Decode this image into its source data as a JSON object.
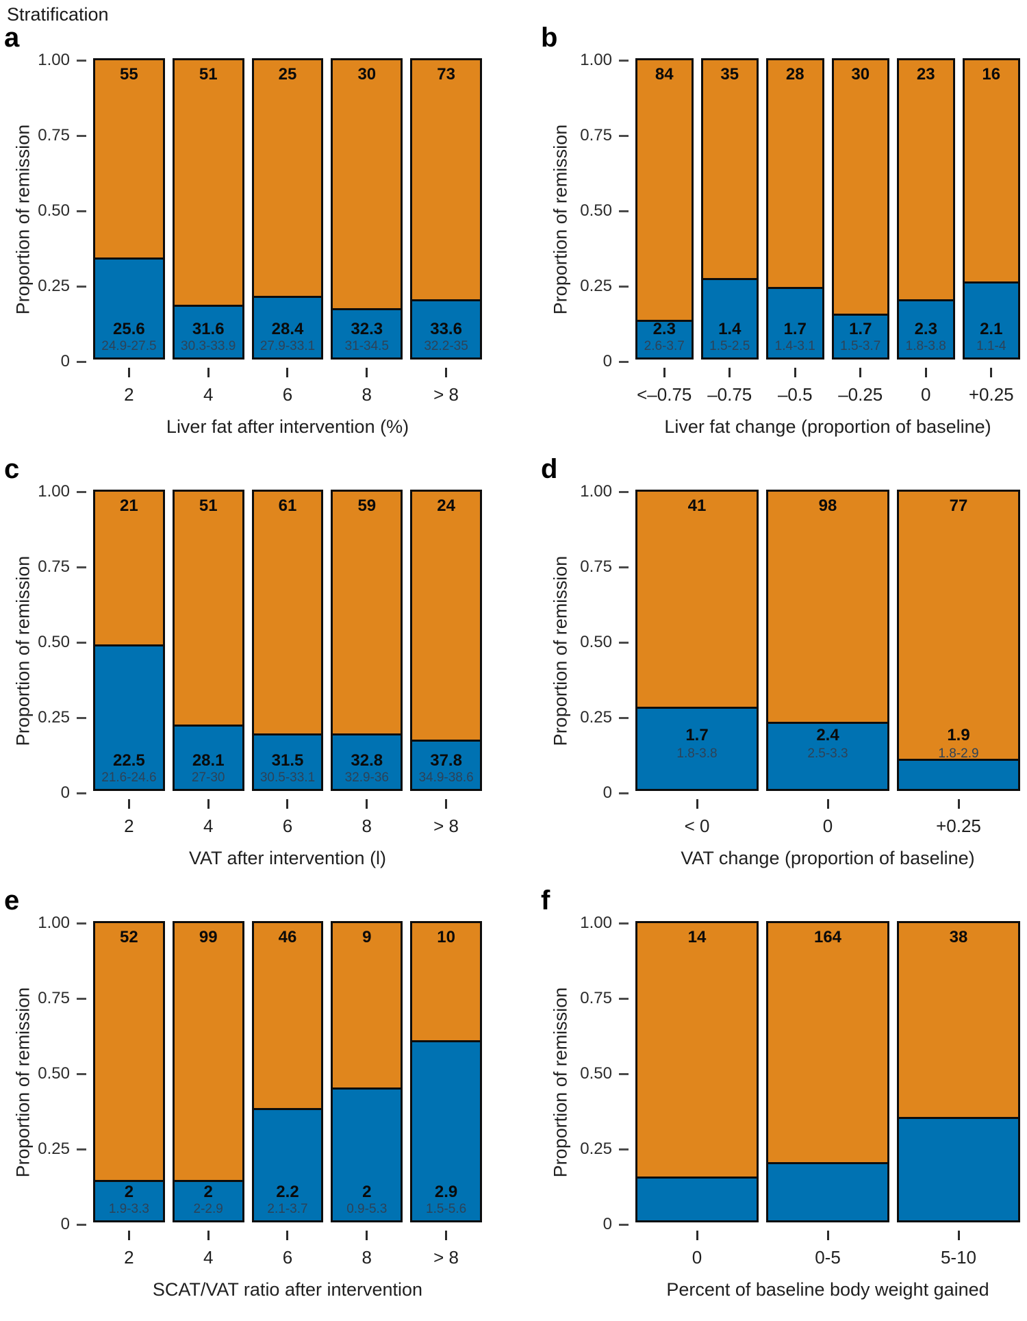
{
  "title": "Stratification",
  "ylabel": "Proportion of remission",
  "y_ticks": [
    {
      "label": "1.00",
      "v": 1.0
    },
    {
      "label": "0.75",
      "v": 0.75
    },
    {
      "label": "0.50",
      "v": 0.5
    },
    {
      "label": "0.25",
      "v": 0.25
    },
    {
      "label": "0",
      "v": 0.0
    }
  ],
  "colors": {
    "remission_blue": "#0072B2",
    "no_remission_orange": "#E0861D",
    "bar_border": "#0d0d0d",
    "range_text": "#2d4257"
  },
  "chart_data": [
    {
      "type": "bar",
      "panel": "a",
      "xlabel": "Liver fat after intervention (%)",
      "ylabel": "Proportion of remission",
      "ylim": [
        0,
        1
      ],
      "stack_order": [
        "remission (blue, bottom)",
        "no remission (orange, top)"
      ],
      "label_position": "low",
      "categories": [
        "2",
        "4",
        "6",
        "8",
        "> 8"
      ],
      "counts": [
        "55",
        "51",
        "25",
        "30",
        "73"
      ],
      "remission_proportion": [
        0.33,
        0.17,
        0.2,
        0.16,
        0.19
      ],
      "value_labels": [
        "25.6",
        "31.6",
        "28.4",
        "32.3",
        "33.6"
      ],
      "range_labels": [
        "24.9-27.5",
        "30.3-33.9",
        "27.9-33.1",
        "31-34.5",
        "32.2-35"
      ]
    },
    {
      "type": "bar",
      "panel": "b",
      "xlabel": "Liver fat change (proportion of baseline)",
      "ylabel": "Proportion of remission",
      "ylim": [
        0,
        1
      ],
      "stack_order": [
        "remission (blue, bottom)",
        "no remission (orange, top)"
      ],
      "label_position": "low",
      "categories": [
        "<–0.75",
        "–0.75",
        "–0.5",
        "–0.25",
        "0",
        "+0.25"
      ],
      "counts": [
        "84",
        "35",
        "28",
        "30",
        "23",
        "16"
      ],
      "remission_proportion": [
        0.12,
        0.26,
        0.23,
        0.14,
        0.19,
        0.25
      ],
      "value_labels": [
        "2.3",
        "1.4",
        "1.7",
        "1.7",
        "2.3",
        "2.1"
      ],
      "range_labels": [
        "2.6-3.7",
        "1.5-2.5",
        "1.4-3.1",
        "1.5-3.7",
        "1.8-3.8",
        "1.1-4"
      ]
    },
    {
      "type": "bar",
      "panel": "c",
      "xlabel": "VAT after intervention (l)",
      "ylabel": "Proportion of remission",
      "ylim": [
        0,
        1
      ],
      "stack_order": [
        "remission (blue, bottom)",
        "no remission (orange, top)"
      ],
      "label_position": "low",
      "categories": [
        "2",
        "4",
        "6",
        "8",
        "> 8"
      ],
      "counts": [
        "21",
        "51",
        "61",
        "59",
        "24"
      ],
      "remission_proportion": [
        0.48,
        0.21,
        0.18,
        0.18,
        0.16
      ],
      "value_labels": [
        "22.5",
        "28.1",
        "31.5",
        "32.8",
        "37.8"
      ],
      "range_labels": [
        "21.6-24.6",
        "27-30",
        "30.5-33.1",
        "32.9-36",
        "34.9-38.6"
      ]
    },
    {
      "type": "bar",
      "panel": "d",
      "xlabel": "VAT change (proportion of baseline)",
      "ylabel": "Proportion of remission",
      "ylim": [
        0,
        1
      ],
      "stack_order": [
        "remission (blue, bottom)",
        "no remission (orange, top)"
      ],
      "label_position": "high",
      "categories": [
        "< 0",
        "0",
        "+0.25"
      ],
      "counts": [
        "41",
        "98",
        "77"
      ],
      "remission_proportion": [
        0.27,
        0.22,
        0.095
      ],
      "value_labels": [
        "1.7",
        "2.4",
        "1.9"
      ],
      "range_labels": [
        "1.8-3.8",
        "2.5-3.3",
        "1.8-2.9"
      ]
    },
    {
      "type": "bar",
      "panel": "e",
      "xlabel": "SCAT/VAT ratio after intervention",
      "ylabel": "Proportion of remission",
      "ylim": [
        0,
        1
      ],
      "stack_order": [
        "remission (blue, bottom)",
        "no remission (orange, top)"
      ],
      "label_position": "low",
      "categories": [
        "2",
        "4",
        "6",
        "8",
        "> 8"
      ],
      "counts": [
        "52",
        "99",
        "46",
        "9",
        "10"
      ],
      "remission_proportion": [
        0.13,
        0.13,
        0.37,
        0.44,
        0.6
      ],
      "value_labels": [
        "2",
        "2",
        "2.2",
        "2",
        "2.9"
      ],
      "range_labels": [
        "1.9-3.3",
        "2-2.9",
        "2.1-3.7",
        "0.9-5.3",
        "1.5-5.6"
      ]
    },
    {
      "type": "bar",
      "panel": "f",
      "xlabel": "Percent of baseline body weight gained",
      "ylabel": "Proportion of remission",
      "ylim": [
        0,
        1
      ],
      "stack_order": [
        "remission (blue, bottom)",
        "no remission (orange, top)"
      ],
      "label_position": "low",
      "categories": [
        "0",
        "0-5",
        "5-10"
      ],
      "counts": [
        "14",
        "164",
        "38"
      ],
      "remission_proportion": [
        0.14,
        0.19,
        0.34
      ],
      "value_labels": [],
      "range_labels": []
    }
  ]
}
